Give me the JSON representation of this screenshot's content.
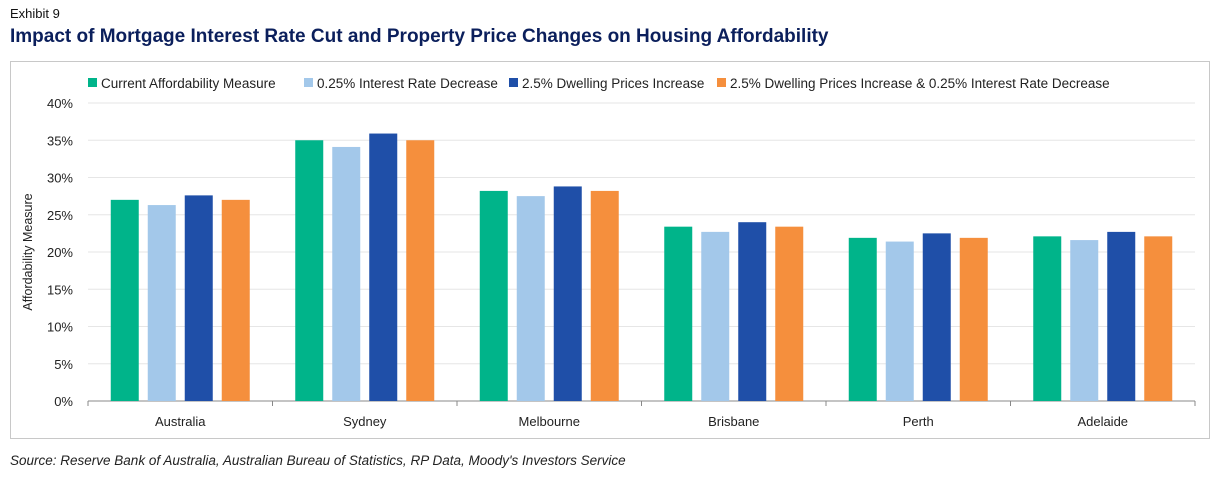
{
  "header": {
    "exhibit": "Exhibit 9",
    "title": "Impact of Mortgage Interest Rate Cut and Property Price Changes on Housing Affordability"
  },
  "source": "Source: Reserve Bank of Australia, Australian Bureau of Statistics, RP Data, Moody's Investors Service",
  "chart_data": {
    "type": "bar",
    "title": "Impact of Mortgage Interest Rate Cut and Property Price Changes on Housing Affordability",
    "xlabel": "",
    "ylabel": "Affordability Measure",
    "ylim": [
      0,
      40
    ],
    "yticks": [
      "0%",
      "5%",
      "10%",
      "15%",
      "20%",
      "25%",
      "30%",
      "35%",
      "40%"
    ],
    "grid": true,
    "legend": "top",
    "categories": [
      "Australia",
      "Sydney",
      "Melbourne",
      "Brisbane",
      "Perth",
      "Adelaide"
    ],
    "series": [
      {
        "name": "Current Affordability Measure",
        "color": "#00b48a",
        "values": [
          27.0,
          35.0,
          28.2,
          23.4,
          21.9,
          22.1
        ]
      },
      {
        "name": "0.25% Interest Rate Decrease",
        "color": "#a3c8ea",
        "values": [
          26.3,
          34.1,
          27.5,
          22.7,
          21.4,
          21.6
        ]
      },
      {
        "name": "2.5% Dwelling Prices Increase",
        "color": "#1f4fa8",
        "values": [
          27.6,
          35.9,
          28.8,
          24.0,
          22.5,
          22.7
        ]
      },
      {
        "name": "2.5% Dwelling Prices Increase & 0.25% Interest Rate Decrease",
        "color": "#f58f3d",
        "values": [
          27.0,
          35.0,
          28.2,
          23.4,
          21.9,
          22.1
        ]
      }
    ]
  }
}
